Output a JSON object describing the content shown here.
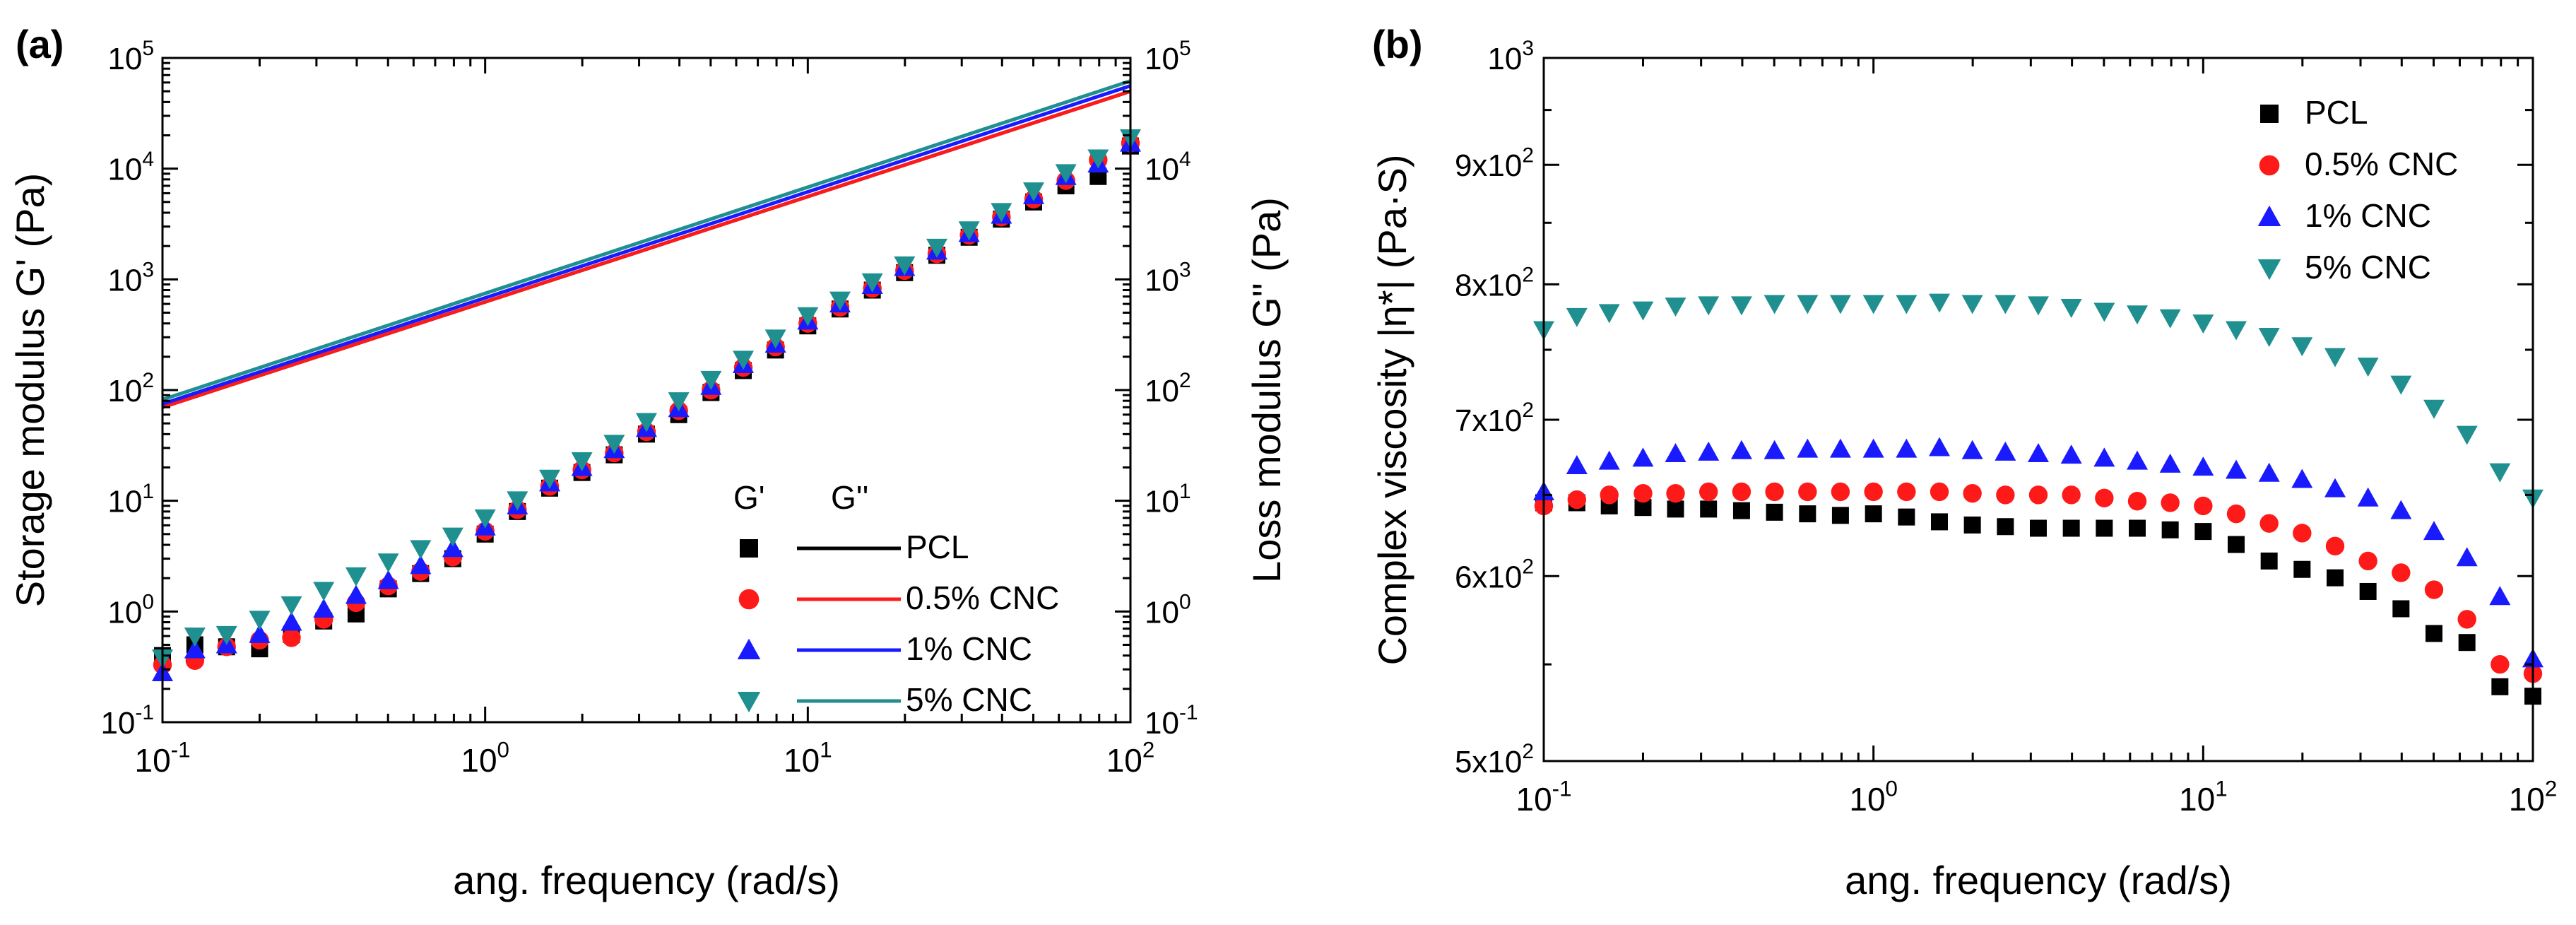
{
  "chart_data": [
    {
      "panel_label": "(a)",
      "type": "scatter+line",
      "title": "",
      "xlabel": "ang. frequency (rad/s)",
      "ylabel_left": "Storage modulus G' (Pa)",
      "ylabel_right": "Loss modulus G\" (Pa)",
      "xscale": "log",
      "yscale": "log",
      "xlim": [
        0.1,
        100
      ],
      "ylim": [
        0.1,
        100000
      ],
      "x_ticks": [
        {
          "mant": "10",
          "exp": "-1"
        },
        {
          "mant": "10",
          "exp": "0"
        },
        {
          "mant": "10",
          "exp": "1"
        },
        {
          "mant": "10",
          "exp": "2"
        }
      ],
      "y_ticks": [
        {
          "mant": "10",
          "exp": "-1"
        },
        {
          "mant": "10",
          "exp": "0"
        },
        {
          "mant": "10",
          "exp": "1"
        },
        {
          "mant": "10",
          "exp": "2"
        },
        {
          "mant": "10",
          "exp": "3"
        },
        {
          "mant": "10",
          "exp": "4"
        },
        {
          "mant": "10",
          "exp": "5"
        }
      ],
      "legend": {
        "placement": "bottom-right",
        "header_gp": "G'",
        "header_gpp": "G''",
        "entries": [
          "PCL",
          "0.5% CNC",
          "1% CNC",
          "5% CNC"
        ]
      },
      "x": [
        0.1,
        0.126,
        0.158,
        0.2,
        0.251,
        0.316,
        0.398,
        0.501,
        0.631,
        0.794,
        1.0,
        1.259,
        1.585,
        1.995,
        2.512,
        3.162,
        3.981,
        5.012,
        6.31,
        7.943,
        10.0,
        12.59,
        15.85,
        19.95,
        25.12,
        31.62,
        39.81,
        50.12,
        63.1,
        79.43,
        100.0
      ],
      "series": [
        {
          "name": "PCL",
          "color": "#000000",
          "marker": "square",
          "gp": [
            0.4,
            0.5,
            0.48,
            0.46,
            0.62,
            0.82,
            0.95,
            1.6,
            2.2,
            3.0,
            5.0,
            8.0,
            13,
            18,
            26,
            40,
            60,
            95,
            150,
            230,
            380,
            540,
            800,
            1150,
            1650,
            2400,
            3500,
            5000,
            7000,
            8500,
            16000
          ],
          "gpp_line": [
            [
              0.1,
              70
            ],
            [
              100,
              50000
            ]
          ]
        },
        {
          "name": "0.5% CNC",
          "color": "#ff1a1a",
          "marker": "circle",
          "gp": [
            0.33,
            0.36,
            0.48,
            0.55,
            0.58,
            0.85,
            1.2,
            1.7,
            2.3,
            3.1,
            5.3,
            8.3,
            13.5,
            19,
            27,
            42,
            65,
            100,
            160,
            245,
            400,
            560,
            830,
            1200,
            1700,
            2500,
            3650,
            5300,
            7800,
            12000,
            17000
          ],
          "gpp_line": [
            [
              0.1,
              70
            ],
            [
              100,
              50000
            ]
          ]
        },
        {
          "name": "1% CNC",
          "color": "#1a1aff",
          "marker": "triangle-up",
          "gp": [
            0.28,
            0.45,
            0.5,
            0.62,
            0.8,
            1.05,
            1.4,
            1.9,
            2.6,
            3.7,
            5.8,
            9.0,
            14.5,
            20,
            29,
            45,
            68,
            108,
            170,
            260,
            420,
            600,
            880,
            1280,
            1800,
            2600,
            3800,
            5700,
            8500,
            11000,
            17000
          ],
          "gpp_line": [
            [
              0.1,
              75
            ],
            [
              100,
              56000
            ]
          ]
        },
        {
          "name": "5% CNC",
          "color": "#1f8f8f",
          "marker": "triangle-down",
          "gp": [
            0.38,
            0.6,
            0.62,
            0.85,
            1.15,
            1.55,
            2.1,
            2.8,
            3.7,
            4.8,
            7.0,
            10.2,
            16,
            23,
            33,
            52,
            80,
            125,
            190,
            295,
            470,
            650,
            950,
            1350,
            1950,
            2800,
            4100,
            6300,
            9200,
            12500,
            19000
          ],
          "gpp_line": [
            [
              0.1,
              82
            ],
            [
              100,
              62000
            ]
          ]
        }
      ]
    },
    {
      "panel_label": "(b)",
      "type": "scatter",
      "title": "",
      "xlabel": "ang. frequency (rad/s)",
      "ylabel": "Complex viscosity |η*| (Pa·S)",
      "xscale": "log",
      "yscale": "log",
      "xlim": [
        0.1,
        100
      ],
      "ylim": [
        500,
        1000
      ],
      "x_ticks": [
        {
          "mant": "10",
          "exp": "-1"
        },
        {
          "mant": "10",
          "exp": "0"
        },
        {
          "mant": "10",
          "exp": "1"
        },
        {
          "mant": "10",
          "exp": "2"
        }
      ],
      "y_ticks": [
        {
          "value": 500,
          "mant": "5x10",
          "exp": "2"
        },
        {
          "value": 600,
          "mant": "6x10",
          "exp": "2"
        },
        {
          "value": 700,
          "mant": "7x10",
          "exp": "2"
        },
        {
          "value": 800,
          "mant": "8x10",
          "exp": "2"
        },
        {
          "value": 900,
          "mant": "9x10",
          "exp": "2"
        },
        {
          "value": 1000,
          "mant": "10",
          "exp": "3"
        }
      ],
      "legend": {
        "placement": "top-right",
        "entries": [
          "PCL",
          "0.5% CNC",
          "1% CNC",
          "5% CNC"
        ]
      },
      "x": [
        0.1,
        0.126,
        0.158,
        0.2,
        0.251,
        0.316,
        0.398,
        0.501,
        0.631,
        0.794,
        1.0,
        1.259,
        1.585,
        1.995,
        2.512,
        3.162,
        3.981,
        5.012,
        6.31,
        7.943,
        10.0,
        12.59,
        15.85,
        19.95,
        25.12,
        31.62,
        39.81,
        50.12,
        63.1,
        79.43,
        100.0
      ],
      "series": [
        {
          "name": "PCL",
          "color": "#000000",
          "marker": "square",
          "values": [
            645,
            645,
            643,
            642,
            641,
            641,
            640,
            639,
            638,
            637,
            638,
            636,
            633,
            631,
            630,
            629,
            629,
            629,
            629,
            628,
            627,
            619,
            609,
            604,
            599,
            591,
            581,
            567,
            562,
            538,
            533
          ]
        },
        {
          "name": "0.5% CNC",
          "color": "#ff1a1a",
          "marker": "circle",
          "values": [
            643,
            647,
            650,
            651,
            651,
            652,
            652,
            652,
            652,
            652,
            652,
            652,
            652,
            651,
            650,
            650,
            650,
            648,
            646,
            645,
            643,
            638,
            632,
            626,
            618,
            609,
            602,
            592,
            575,
            550,
            545
          ]
        },
        {
          "name": "1% CNC",
          "color": "#1a1aff",
          "marker": "triangle-up",
          "values": [
            652,
            669,
            672,
            674,
            677,
            678,
            679,
            679,
            680,
            680,
            680,
            680,
            681,
            679,
            678,
            677,
            676,
            674,
            672,
            670,
            668,
            666,
            664,
            660,
            654,
            648,
            640,
            627,
            611,
            588,
            553
          ]
        },
        {
          "name": "5% CNC",
          "color": "#1f8f8f",
          "marker": "triangle-down",
          "values": [
            765,
            775,
            778,
            780,
            783,
            784,
            784,
            785,
            785,
            785,
            785,
            785,
            786,
            785,
            785,
            784,
            782,
            779,
            777,
            774,
            770,
            765,
            760,
            753,
            745,
            738,
            725,
            708,
            690,
            665,
            648
          ]
        }
      ]
    }
  ]
}
